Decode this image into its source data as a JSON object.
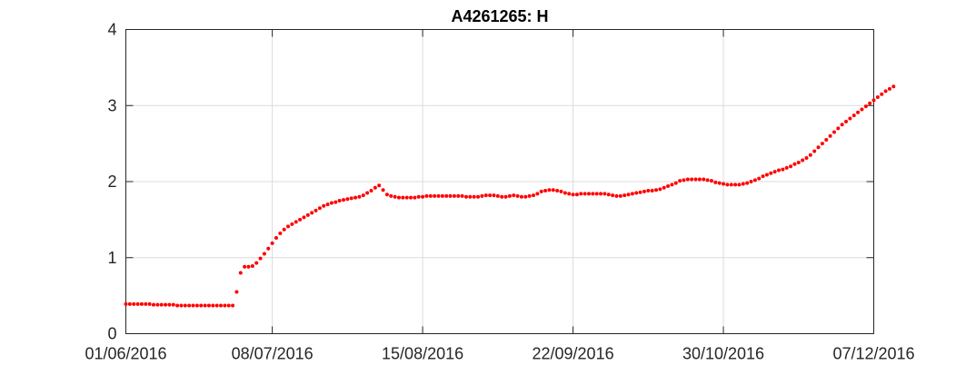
{
  "chart_data": {
    "type": "scatter",
    "title": "A4261265: H",
    "xlabel": "",
    "ylabel": "",
    "xlim": [
      "2016-06-01",
      "2016-12-07"
    ],
    "ylim": [
      0,
      4
    ],
    "grid": true,
    "marker_color": "#ff0000",
    "x_ticks": [
      "2016-06-01",
      "2016-07-08",
      "2016-08-15",
      "2016-09-22",
      "2016-10-30",
      "2016-12-07"
    ],
    "x_tick_labels": [
      "01/06/2016",
      "08/07/2016",
      "15/08/2016",
      "22/09/2016",
      "30/10/2016",
      "07/12/2016"
    ],
    "y_ticks": [
      0,
      1,
      2,
      3,
      4
    ],
    "y_tick_labels": [
      "0",
      "1",
      "2",
      "3",
      "4"
    ],
    "series": [
      {
        "points": [
          [
            "2016-06-01",
            0.39
          ],
          [
            "2016-06-02",
            0.39
          ],
          [
            "2016-06-03",
            0.39
          ],
          [
            "2016-06-04",
            0.39
          ],
          [
            "2016-06-05",
            0.39
          ],
          [
            "2016-06-06",
            0.39
          ],
          [
            "2016-06-07",
            0.39
          ],
          [
            "2016-06-08",
            0.38
          ],
          [
            "2016-06-09",
            0.38
          ],
          [
            "2016-06-10",
            0.38
          ],
          [
            "2016-06-11",
            0.38
          ],
          [
            "2016-06-12",
            0.38
          ],
          [
            "2016-06-13",
            0.38
          ],
          [
            "2016-06-14",
            0.37
          ],
          [
            "2016-06-15",
            0.37
          ],
          [
            "2016-06-16",
            0.37
          ],
          [
            "2016-06-17",
            0.37
          ],
          [
            "2016-06-18",
            0.37
          ],
          [
            "2016-06-19",
            0.37
          ],
          [
            "2016-06-20",
            0.37
          ],
          [
            "2016-06-21",
            0.37
          ],
          [
            "2016-06-22",
            0.37
          ],
          [
            "2016-06-23",
            0.37
          ],
          [
            "2016-06-24",
            0.37
          ],
          [
            "2016-06-25",
            0.37
          ],
          [
            "2016-06-26",
            0.37
          ],
          [
            "2016-06-27",
            0.37
          ],
          [
            "2016-06-28",
            0.37
          ],
          [
            "2016-06-29",
            0.55
          ],
          [
            "2016-06-30",
            0.8
          ],
          [
            "2016-07-01",
            0.88
          ],
          [
            "2016-07-02",
            0.88
          ],
          [
            "2016-07-03",
            0.89
          ],
          [
            "2016-07-04",
            0.93
          ],
          [
            "2016-07-05",
            0.99
          ],
          [
            "2016-07-06",
            1.05
          ],
          [
            "2016-07-07",
            1.12
          ],
          [
            "2016-07-08",
            1.19
          ],
          [
            "2016-07-09",
            1.26
          ],
          [
            "2016-07-10",
            1.32
          ],
          [
            "2016-07-11",
            1.37
          ],
          [
            "2016-07-12",
            1.41
          ],
          [
            "2016-07-13",
            1.44
          ],
          [
            "2016-07-14",
            1.47
          ],
          [
            "2016-07-15",
            1.5
          ],
          [
            "2016-07-16",
            1.53
          ],
          [
            "2016-07-17",
            1.56
          ],
          [
            "2016-07-18",
            1.59
          ],
          [
            "2016-07-19",
            1.62
          ],
          [
            "2016-07-20",
            1.65
          ],
          [
            "2016-07-21",
            1.68
          ],
          [
            "2016-07-22",
            1.7
          ],
          [
            "2016-07-23",
            1.72
          ],
          [
            "2016-07-24",
            1.73
          ],
          [
            "2016-07-25",
            1.75
          ],
          [
            "2016-07-26",
            1.76
          ],
          [
            "2016-07-27",
            1.77
          ],
          [
            "2016-07-28",
            1.78
          ],
          [
            "2016-07-29",
            1.79
          ],
          [
            "2016-07-30",
            1.8
          ],
          [
            "2016-07-31",
            1.82
          ],
          [
            "2016-08-01",
            1.85
          ],
          [
            "2016-08-02",
            1.88
          ],
          [
            "2016-08-03",
            1.92
          ],
          [
            "2016-08-04",
            1.95
          ],
          [
            "2016-08-05",
            1.89
          ],
          [
            "2016-08-06",
            1.83
          ],
          [
            "2016-08-07",
            1.81
          ],
          [
            "2016-08-08",
            1.8
          ],
          [
            "2016-08-09",
            1.79
          ],
          [
            "2016-08-10",
            1.79
          ],
          [
            "2016-08-11",
            1.79
          ],
          [
            "2016-08-12",
            1.79
          ],
          [
            "2016-08-13",
            1.79
          ],
          [
            "2016-08-14",
            1.8
          ],
          [
            "2016-08-15",
            1.8
          ],
          [
            "2016-08-16",
            1.81
          ],
          [
            "2016-08-17",
            1.81
          ],
          [
            "2016-08-18",
            1.81
          ],
          [
            "2016-08-19",
            1.81
          ],
          [
            "2016-08-20",
            1.81
          ],
          [
            "2016-08-21",
            1.81
          ],
          [
            "2016-08-22",
            1.81
          ],
          [
            "2016-08-23",
            1.81
          ],
          [
            "2016-08-24",
            1.81
          ],
          [
            "2016-08-25",
            1.81
          ],
          [
            "2016-08-26",
            1.8
          ],
          [
            "2016-08-27",
            1.8
          ],
          [
            "2016-08-28",
            1.8
          ],
          [
            "2016-08-29",
            1.8
          ],
          [
            "2016-08-30",
            1.81
          ],
          [
            "2016-08-31",
            1.82
          ],
          [
            "2016-09-01",
            1.82
          ],
          [
            "2016-09-02",
            1.82
          ],
          [
            "2016-09-03",
            1.81
          ],
          [
            "2016-09-04",
            1.8
          ],
          [
            "2016-09-05",
            1.8
          ],
          [
            "2016-09-06",
            1.81
          ],
          [
            "2016-09-07",
            1.82
          ],
          [
            "2016-09-08",
            1.81
          ],
          [
            "2016-09-09",
            1.8
          ],
          [
            "2016-09-10",
            1.8
          ],
          [
            "2016-09-11",
            1.81
          ],
          [
            "2016-09-12",
            1.82
          ],
          [
            "2016-09-13",
            1.84
          ],
          [
            "2016-09-14",
            1.87
          ],
          [
            "2016-09-15",
            1.88
          ],
          [
            "2016-09-16",
            1.89
          ],
          [
            "2016-09-17",
            1.89
          ],
          [
            "2016-09-18",
            1.88
          ],
          [
            "2016-09-19",
            1.87
          ],
          [
            "2016-09-20",
            1.85
          ],
          [
            "2016-09-21",
            1.84
          ],
          [
            "2016-09-22",
            1.83
          ],
          [
            "2016-09-23",
            1.83
          ],
          [
            "2016-09-24",
            1.84
          ],
          [
            "2016-09-25",
            1.84
          ],
          [
            "2016-09-26",
            1.84
          ],
          [
            "2016-09-27",
            1.84
          ],
          [
            "2016-09-28",
            1.84
          ],
          [
            "2016-09-29",
            1.84
          ],
          [
            "2016-09-30",
            1.84
          ],
          [
            "2016-10-01",
            1.83
          ],
          [
            "2016-10-02",
            1.82
          ],
          [
            "2016-10-03",
            1.81
          ],
          [
            "2016-10-04",
            1.81
          ],
          [
            "2016-10-05",
            1.82
          ],
          [
            "2016-10-06",
            1.83
          ],
          [
            "2016-10-07",
            1.84
          ],
          [
            "2016-10-08",
            1.85
          ],
          [
            "2016-10-09",
            1.86
          ],
          [
            "2016-10-10",
            1.87
          ],
          [
            "2016-10-11",
            1.88
          ],
          [
            "2016-10-12",
            1.88
          ],
          [
            "2016-10-13",
            1.89
          ],
          [
            "2016-10-14",
            1.9
          ],
          [
            "2016-10-15",
            1.92
          ],
          [
            "2016-10-16",
            1.94
          ],
          [
            "2016-10-17",
            1.96
          ],
          [
            "2016-10-18",
            1.98
          ],
          [
            "2016-10-19",
            2.01
          ],
          [
            "2016-10-20",
            2.02
          ],
          [
            "2016-10-21",
            2.03
          ],
          [
            "2016-10-22",
            2.03
          ],
          [
            "2016-10-23",
            2.03
          ],
          [
            "2016-10-24",
            2.03
          ],
          [
            "2016-10-25",
            2.03
          ],
          [
            "2016-10-26",
            2.02
          ],
          [
            "2016-10-27",
            2.01
          ],
          [
            "2016-10-28",
            1.99
          ],
          [
            "2016-10-29",
            1.98
          ],
          [
            "2016-10-30",
            1.97
          ],
          [
            "2016-10-31",
            1.96
          ],
          [
            "2016-11-01",
            1.96
          ],
          [
            "2016-11-02",
            1.96
          ],
          [
            "2016-11-03",
            1.96
          ],
          [
            "2016-11-04",
            1.97
          ],
          [
            "2016-11-05",
            1.98
          ],
          [
            "2016-11-06",
            2.0
          ],
          [
            "2016-11-07",
            2.02
          ],
          [
            "2016-11-08",
            2.04
          ],
          [
            "2016-11-09",
            2.07
          ],
          [
            "2016-11-10",
            2.09
          ],
          [
            "2016-11-11",
            2.11
          ],
          [
            "2016-11-12",
            2.13
          ],
          [
            "2016-11-13",
            2.15
          ],
          [
            "2016-11-14",
            2.16
          ],
          [
            "2016-11-15",
            2.18
          ],
          [
            "2016-11-16",
            2.2
          ],
          [
            "2016-11-17",
            2.23
          ],
          [
            "2016-11-18",
            2.25
          ],
          [
            "2016-11-19",
            2.28
          ],
          [
            "2016-11-20",
            2.31
          ],
          [
            "2016-11-21",
            2.35
          ],
          [
            "2016-11-22",
            2.4
          ],
          [
            "2016-11-23",
            2.45
          ],
          [
            "2016-11-24",
            2.5
          ],
          [
            "2016-11-25",
            2.55
          ],
          [
            "2016-11-26",
            2.6
          ],
          [
            "2016-11-27",
            2.65
          ],
          [
            "2016-11-28",
            2.7
          ],
          [
            "2016-11-29",
            2.75
          ],
          [
            "2016-11-30",
            2.79
          ],
          [
            "2016-12-01",
            2.83
          ],
          [
            "2016-12-02",
            2.87
          ],
          [
            "2016-12-03",
            2.91
          ],
          [
            "2016-12-04",
            2.95
          ],
          [
            "2016-12-05",
            2.99
          ],
          [
            "2016-12-06",
            3.03
          ],
          [
            "2016-12-07",
            3.07
          ],
          [
            "2016-12-08",
            3.11
          ],
          [
            "2016-12-09",
            3.15
          ],
          [
            "2016-12-10",
            3.19
          ],
          [
            "2016-12-11",
            3.22
          ],
          [
            "2016-12-12",
            3.25
          ]
        ]
      }
    ]
  }
}
